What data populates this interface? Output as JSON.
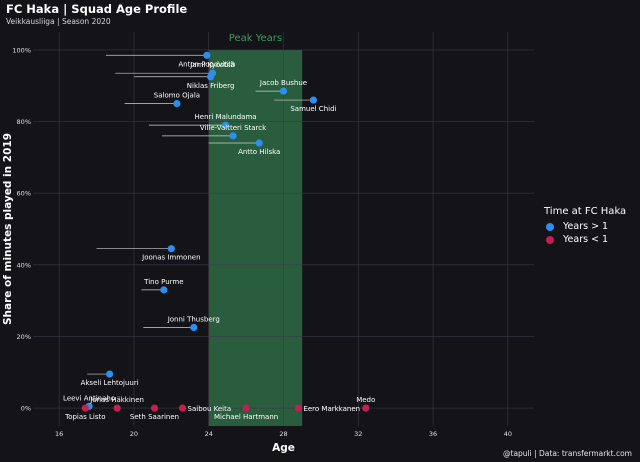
{
  "header": {
    "title": "FC Haka | Squad Age Profile",
    "subtitle": "Veikkausliiga | Season 2020"
  },
  "footer": {
    "credit": "@tapuli | Data: transfermarkt.com"
  },
  "colors": {
    "background": "#131318",
    "years_gt_1": "#2b8ff0",
    "years_lt_1": "#c41f53",
    "peak_band": "#2e6b45",
    "peak_text": "#3d9a63"
  },
  "legend": {
    "title": "Time at FC Haka",
    "entries": [
      {
        "label": "Years > 1",
        "color": "#2b8ff0"
      },
      {
        "label": "Years < 1",
        "color": "#c41f53"
      }
    ]
  },
  "chart_data": {
    "type": "scatter",
    "title": "FC Haka | Squad Age Profile",
    "xlabel": "Age",
    "ylabel": "Share of minutes played in 2019",
    "xlim": [
      14.6,
      41.4
    ],
    "ylim": [
      -5,
      105
    ],
    "xticks": [
      16,
      20,
      24,
      28,
      32,
      36,
      40
    ],
    "yticks": [
      0,
      20,
      40,
      60,
      80,
      100
    ],
    "ytick_suffix": "%",
    "grid": true,
    "peak_band": {
      "from": 24,
      "to": 29,
      "label": "Peak Years"
    },
    "points": [
      {
        "name": "Anton Popovitch",
        "age": 23.9,
        "share": 98.5,
        "start_age": 18.5,
        "group": "Years > 1",
        "label_pos": "below"
      },
      {
        "name": "Jami Kyöstilä",
        "age": 24.2,
        "share": 93.5,
        "start_age": 19.0,
        "group": "Years > 1",
        "label_pos": "above"
      },
      {
        "name": "Niklas Friberg",
        "age": 24.1,
        "share": 92.5,
        "start_age": 20.0,
        "group": "Years > 1",
        "label_pos": "below"
      },
      {
        "name": "Jacob Bushue",
        "age": 28.0,
        "share": 88.5,
        "start_age": 26.5,
        "group": "Years > 1",
        "label_pos": "above"
      },
      {
        "name": "Samuel Chidi",
        "age": 29.6,
        "share": 86.0,
        "start_age": 27.5,
        "group": "Years > 1",
        "label_pos": "below"
      },
      {
        "name": "Salomo Ojala",
        "age": 22.3,
        "share": 85.0,
        "start_age": 19.5,
        "group": "Years > 1",
        "label_pos": "above"
      },
      {
        "name": "Henri Malundama",
        "age": 24.9,
        "share": 79.0,
        "start_age": 20.8,
        "group": "Years > 1",
        "label_pos": "above"
      },
      {
        "name": "Ville-Valtteri Starck",
        "age": 25.3,
        "share": 76.0,
        "start_age": 21.5,
        "group": "Years > 1",
        "label_pos": "above"
      },
      {
        "name": "Antto Hilska",
        "age": 26.7,
        "share": 74.0,
        "start_age": 24.0,
        "group": "Years > 1",
        "label_pos": "below"
      },
      {
        "name": "Joonas Immonen",
        "age": 22.0,
        "share": 44.5,
        "start_age": 18.0,
        "group": "Years > 1",
        "label_pos": "below"
      },
      {
        "name": "Tino Purme",
        "age": 21.6,
        "share": 33.0,
        "start_age": 20.4,
        "group": "Years > 1",
        "label_pos": "above"
      },
      {
        "name": "Jonni Thusberg",
        "age": 23.2,
        "share": 22.5,
        "start_age": 20.5,
        "group": "Years > 1",
        "label_pos": "above"
      },
      {
        "name": "Akseli Lehtojuuri",
        "age": 18.7,
        "share": 9.5,
        "start_age": 17.5,
        "group": "Years > 1",
        "label_pos": "below"
      },
      {
        "name": "Leevi Antinaho",
        "age": 17.6,
        "share": 0.5,
        "start_age": 17.6,
        "group": "Years > 1",
        "label_pos": "above"
      },
      {
        "name": "Topias Listo",
        "age": 17.4,
        "share": 0.0,
        "start_age": 17.4,
        "group": "Years < 1",
        "label_pos": "below"
      },
      {
        "name": "Jonas Häkkinen",
        "age": 19.1,
        "share": 0.0,
        "start_age": 19.1,
        "group": "Years < 1",
        "label_pos": "above"
      },
      {
        "name": "Seth Saarinen",
        "age": 21.1,
        "share": 0.0,
        "start_age": 21.1,
        "group": "Years < 1",
        "label_pos": "below"
      },
      {
        "name": "Saibou Keita",
        "age": 22.6,
        "share": 0.0,
        "start_age": 22.6,
        "group": "Years < 1",
        "label_pos": "right"
      },
      {
        "name": "Michael Hartmann",
        "age": 26.0,
        "share": 0.0,
        "start_age": 26.0,
        "group": "Years < 1",
        "label_pos": "below"
      },
      {
        "name": "Eero Markkanen",
        "age": 28.8,
        "share": 0.0,
        "start_age": 28.8,
        "group": "Years < 1",
        "label_pos": "right"
      },
      {
        "name": "Medo",
        "age": 32.4,
        "share": 0.0,
        "start_age": 32.4,
        "group": "Years < 1",
        "label_pos": "above"
      }
    ]
  }
}
